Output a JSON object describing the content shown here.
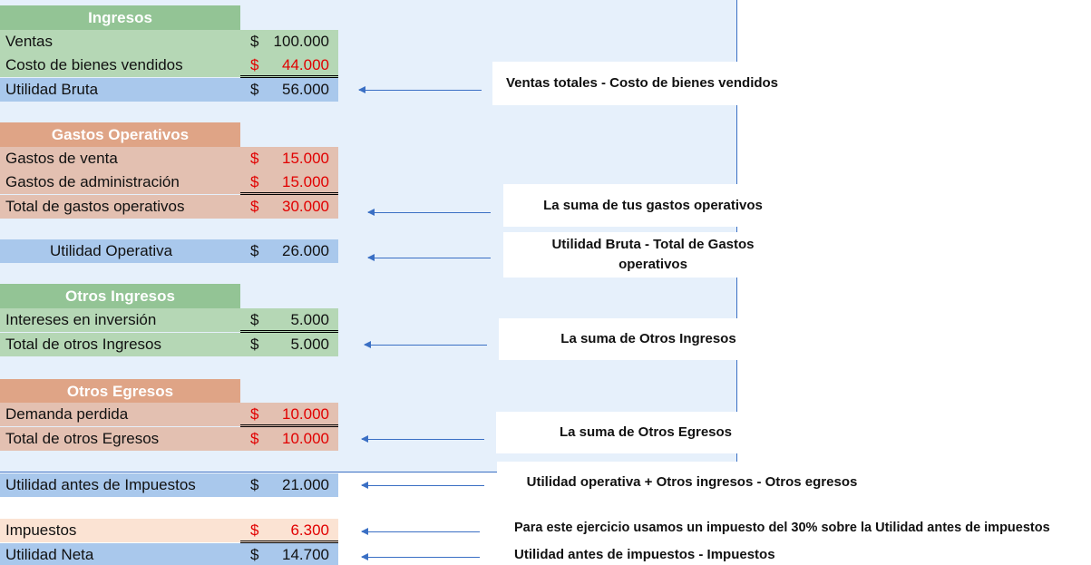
{
  "sections": {
    "ingresos": {
      "title": "Ingresos",
      "ventas": {
        "label": "Ventas",
        "currency": "$",
        "amount": "100.000"
      },
      "costo": {
        "label": "Costo de bienes vendidos",
        "currency": "$",
        "amount": "44.000"
      },
      "utilidad_bruta": {
        "label": "Utilidad Bruta",
        "currency": "$",
        "amount": "56.000"
      }
    },
    "gastos_operativos": {
      "title": "Gastos Operativos",
      "venta": {
        "label": "Gastos de venta",
        "currency": "$",
        "amount": "15.000"
      },
      "administracion": {
        "label": "Gastos de administración",
        "currency": "$",
        "amount": "15.000"
      },
      "total": {
        "label": "Total de gastos operativos",
        "currency": "$",
        "amount": "30.000"
      }
    },
    "utilidad_operativa": {
      "label": "Utilidad Operativa",
      "currency": "$",
      "amount": "26.000"
    },
    "otros_ingresos": {
      "title": "Otros Ingresos",
      "intereses": {
        "label": "Intereses en inversión",
        "currency": "$",
        "amount": "5.000"
      },
      "total": {
        "label": "Total de otros Ingresos",
        "currency": "$",
        "amount": "5.000"
      }
    },
    "otros_egresos": {
      "title": "Otros Egresos",
      "demanda": {
        "label": "Demanda perdida",
        "currency": "$",
        "amount": "10.000"
      },
      "total": {
        "label": "Total de otros Egresos",
        "currency": "$",
        "amount": "10.000"
      }
    },
    "utilidad_antes": {
      "label": "Utilidad antes de Impuestos",
      "currency": "$",
      "amount": "21.000"
    },
    "impuestos": {
      "label": "Impuestos",
      "currency": "$",
      "amount": "6.300"
    },
    "utilidad_neta": {
      "label": "Utilidad Neta",
      "currency": "$",
      "amount": "14.700"
    }
  },
  "notes": {
    "utilidad_bruta": "Ventas totales - Costo de bienes vendidos",
    "gastos_operativos": "La suma de tus gastos operativos",
    "utilidad_operativa": "Utilidad Bruta - Total de Gastos operativos",
    "otros_ingresos": "La suma de Otros Ingresos",
    "otros_egresos": "La suma de Otros Egresos",
    "utilidad_antes": "Utilidad operativa + Otros ingresos - Otros egresos",
    "impuestos": "Para este ejercicio usamos un impuesto del 30% sobre la Utilidad antes de impuestos",
    "utilidad_neta": "Utilidad antes de impuestos - Impuestos"
  },
  "colors": {
    "header_green": "#93c495",
    "row_green": "#b5d7b5",
    "header_salmon": "#dfa486",
    "row_salmon": "#e3c0b1",
    "row_blue": "#a9c8ec",
    "row_peach": "#fbe3d3",
    "negative_red": "#e10000",
    "arrow_blue": "#3a6fc4"
  }
}
